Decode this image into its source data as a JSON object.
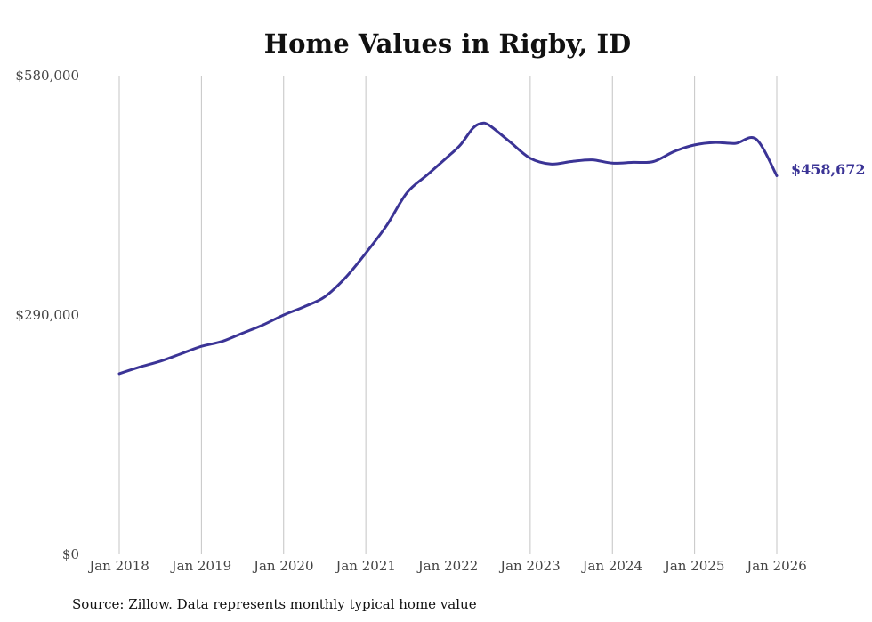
{
  "chart_data": {
    "type": "line",
    "title": "Home Values in Rigby, ID",
    "source": "Source: Zillow. Data represents monthly typical home value",
    "xlabel": "",
    "ylabel": "",
    "ylim": [
      0,
      580000
    ],
    "y_ticks": [
      {
        "value": 0,
        "label": "$0"
      },
      {
        "value": 290000,
        "label": "$290,000"
      },
      {
        "value": 580000,
        "label": "$580,000"
      }
    ],
    "x_range": [
      2018.0,
      2026.0
    ],
    "x_ticks": [
      {
        "value": 2018,
        "label": "Jan 2018"
      },
      {
        "value": 2019,
        "label": "Jan 2019"
      },
      {
        "value": 2020,
        "label": "Jan 2020"
      },
      {
        "value": 2021,
        "label": "Jan 2021"
      },
      {
        "value": 2022,
        "label": "Jan 2022"
      },
      {
        "value": 2023,
        "label": "Jan 2023"
      },
      {
        "value": 2024,
        "label": "Jan 2024"
      },
      {
        "value": 2025,
        "label": "Jan 2025"
      },
      {
        "value": 2026,
        "label": "Jan 2026"
      }
    ],
    "grid": "vertical",
    "color": "#3b3496",
    "series": [
      {
        "name": "Typical home value",
        "x": [
          2018.0,
          2018.25,
          2018.5,
          2018.75,
          2019.0,
          2019.25,
          2019.5,
          2019.75,
          2020.0,
          2020.25,
          2020.5,
          2020.75,
          2021.0,
          2021.25,
          2021.5,
          2021.75,
          2022.0,
          2022.15,
          2022.3,
          2022.4,
          2022.5,
          2022.75,
          2023.0,
          2023.25,
          2023.5,
          2023.75,
          2024.0,
          2024.25,
          2024.5,
          2024.75,
          2025.0,
          2025.25,
          2025.5,
          2025.75,
          2026.0
        ],
        "values": [
          219000,
          227000,
          234000,
          243000,
          252000,
          258000,
          268000,
          278000,
          290000,
          300000,
          312000,
          335000,
          365000,
          398000,
          438000,
          460000,
          482000,
          496000,
          516000,
          522000,
          520000,
          500000,
          480000,
          473000,
          476000,
          478000,
          474000,
          475000,
          476000,
          488000,
          496000,
          499000,
          498000,
          503000,
          458672
        ]
      }
    ],
    "end_label": "$458,672"
  }
}
